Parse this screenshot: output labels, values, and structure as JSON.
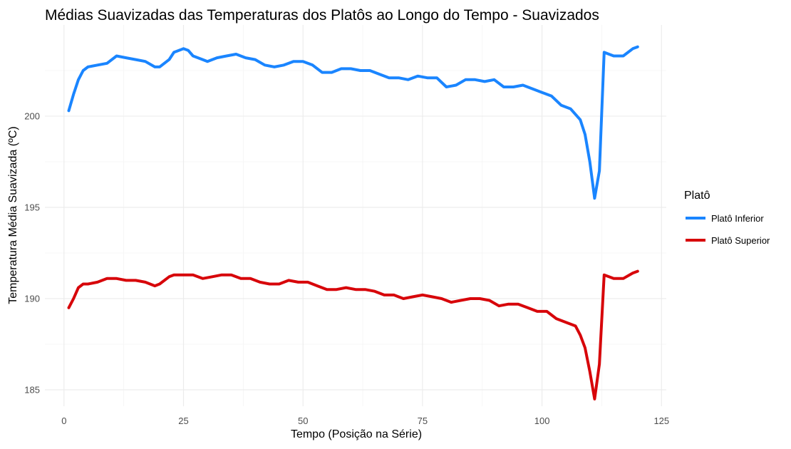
{
  "chart_data": {
    "type": "line",
    "title": "Médias Suavizadas das Temperaturas dos Platôs ao Longo do Tempo - Suavizados",
    "xlabel": "Tempo (Posição na Série)",
    "ylabel": "Temperatura Média Suavizada (ºC)",
    "xlim": [
      -4,
      126
    ],
    "ylim": [
      184.1,
      205.0
    ],
    "x_ticks": [
      0,
      25,
      50,
      75,
      100,
      125
    ],
    "y_ticks": [
      185,
      190,
      195,
      200
    ],
    "grid": true,
    "legend": {
      "title": "Platô",
      "position": "right"
    },
    "series": [
      {
        "name": "Platô Inferior",
        "color": "#1a85ff",
        "points": [
          [
            1,
            200.3
          ],
          [
            2,
            201.2
          ],
          [
            3,
            202.0
          ],
          [
            4,
            202.5
          ],
          [
            5,
            202.7
          ],
          [
            7,
            202.8
          ],
          [
            9,
            202.9
          ],
          [
            11,
            203.3
          ],
          [
            13,
            203.2
          ],
          [
            15,
            203.1
          ],
          [
            17,
            203.0
          ],
          [
            19,
            202.7
          ],
          [
            20,
            202.7
          ],
          [
            22,
            203.1
          ],
          [
            23,
            203.5
          ],
          [
            25,
            203.7
          ],
          [
            26,
            203.6
          ],
          [
            27,
            203.3
          ],
          [
            29,
            203.1
          ],
          [
            30,
            203.0
          ],
          [
            32,
            203.2
          ],
          [
            34,
            203.3
          ],
          [
            36,
            203.4
          ],
          [
            38,
            203.2
          ],
          [
            40,
            203.1
          ],
          [
            42,
            202.8
          ],
          [
            44,
            202.7
          ],
          [
            46,
            202.8
          ],
          [
            48,
            203.0
          ],
          [
            50,
            203.0
          ],
          [
            52,
            202.8
          ],
          [
            54,
            202.4
          ],
          [
            56,
            202.4
          ],
          [
            58,
            202.6
          ],
          [
            60,
            202.6
          ],
          [
            62,
            202.5
          ],
          [
            64,
            202.5
          ],
          [
            66,
            202.3
          ],
          [
            68,
            202.1
          ],
          [
            70,
            202.1
          ],
          [
            72,
            202.0
          ],
          [
            74,
            202.2
          ],
          [
            76,
            202.1
          ],
          [
            78,
            202.1
          ],
          [
            80,
            201.6
          ],
          [
            82,
            201.7
          ],
          [
            84,
            202.0
          ],
          [
            86,
            202.0
          ],
          [
            88,
            201.9
          ],
          [
            90,
            202.0
          ],
          [
            92,
            201.6
          ],
          [
            94,
            201.6
          ],
          [
            96,
            201.7
          ],
          [
            98,
            201.5
          ],
          [
            100,
            201.3
          ],
          [
            102,
            201.1
          ],
          [
            104,
            200.6
          ],
          [
            106,
            200.4
          ],
          [
            108,
            199.8
          ],
          [
            109,
            199.0
          ],
          [
            110,
            197.5
          ],
          [
            111,
            195.5
          ],
          [
            112,
            197.0
          ],
          [
            113,
            203.5
          ],
          [
            114,
            203.4
          ],
          [
            115,
            203.3
          ],
          [
            117,
            203.3
          ],
          [
            119,
            203.7
          ],
          [
            120,
            203.8
          ]
        ]
      },
      {
        "name": "Platô Superior",
        "color": "#d7050a",
        "points": [
          [
            1,
            189.5
          ],
          [
            2,
            190.0
          ],
          [
            3,
            190.6
          ],
          [
            4,
            190.8
          ],
          [
            5,
            190.8
          ],
          [
            7,
            190.9
          ],
          [
            9,
            191.1
          ],
          [
            11,
            191.1
          ],
          [
            13,
            191.0
          ],
          [
            15,
            191.0
          ],
          [
            17,
            190.9
          ],
          [
            19,
            190.7
          ],
          [
            20,
            190.8
          ],
          [
            22,
            191.2
          ],
          [
            23,
            191.3
          ],
          [
            25,
            191.3
          ],
          [
            27,
            191.3
          ],
          [
            29,
            191.1
          ],
          [
            31,
            191.2
          ],
          [
            33,
            191.3
          ],
          [
            35,
            191.3
          ],
          [
            37,
            191.1
          ],
          [
            39,
            191.1
          ],
          [
            41,
            190.9
          ],
          [
            43,
            190.8
          ],
          [
            45,
            190.8
          ],
          [
            47,
            191.0
          ],
          [
            49,
            190.9
          ],
          [
            51,
            190.9
          ],
          [
            53,
            190.7
          ],
          [
            55,
            190.5
          ],
          [
            57,
            190.5
          ],
          [
            59,
            190.6
          ],
          [
            61,
            190.5
          ],
          [
            63,
            190.5
          ],
          [
            65,
            190.4
          ],
          [
            67,
            190.2
          ],
          [
            69,
            190.2
          ],
          [
            71,
            190.0
          ],
          [
            73,
            190.1
          ],
          [
            75,
            190.2
          ],
          [
            77,
            190.1
          ],
          [
            79,
            190.0
          ],
          [
            81,
            189.8
          ],
          [
            83,
            189.9
          ],
          [
            85,
            190.0
          ],
          [
            87,
            190.0
          ],
          [
            89,
            189.9
          ],
          [
            91,
            189.6
          ],
          [
            93,
            189.7
          ],
          [
            95,
            189.7
          ],
          [
            97,
            189.5
          ],
          [
            99,
            189.3
          ],
          [
            101,
            189.3
          ],
          [
            103,
            188.9
          ],
          [
            105,
            188.7
          ],
          [
            107,
            188.5
          ],
          [
            108,
            188.0
          ],
          [
            109,
            187.3
          ],
          [
            110,
            186.0
          ],
          [
            111,
            184.5
          ],
          [
            112,
            186.4
          ],
          [
            113,
            191.3
          ],
          [
            115,
            191.1
          ],
          [
            117,
            191.1
          ],
          [
            119,
            191.4
          ],
          [
            120,
            191.5
          ]
        ]
      }
    ]
  }
}
